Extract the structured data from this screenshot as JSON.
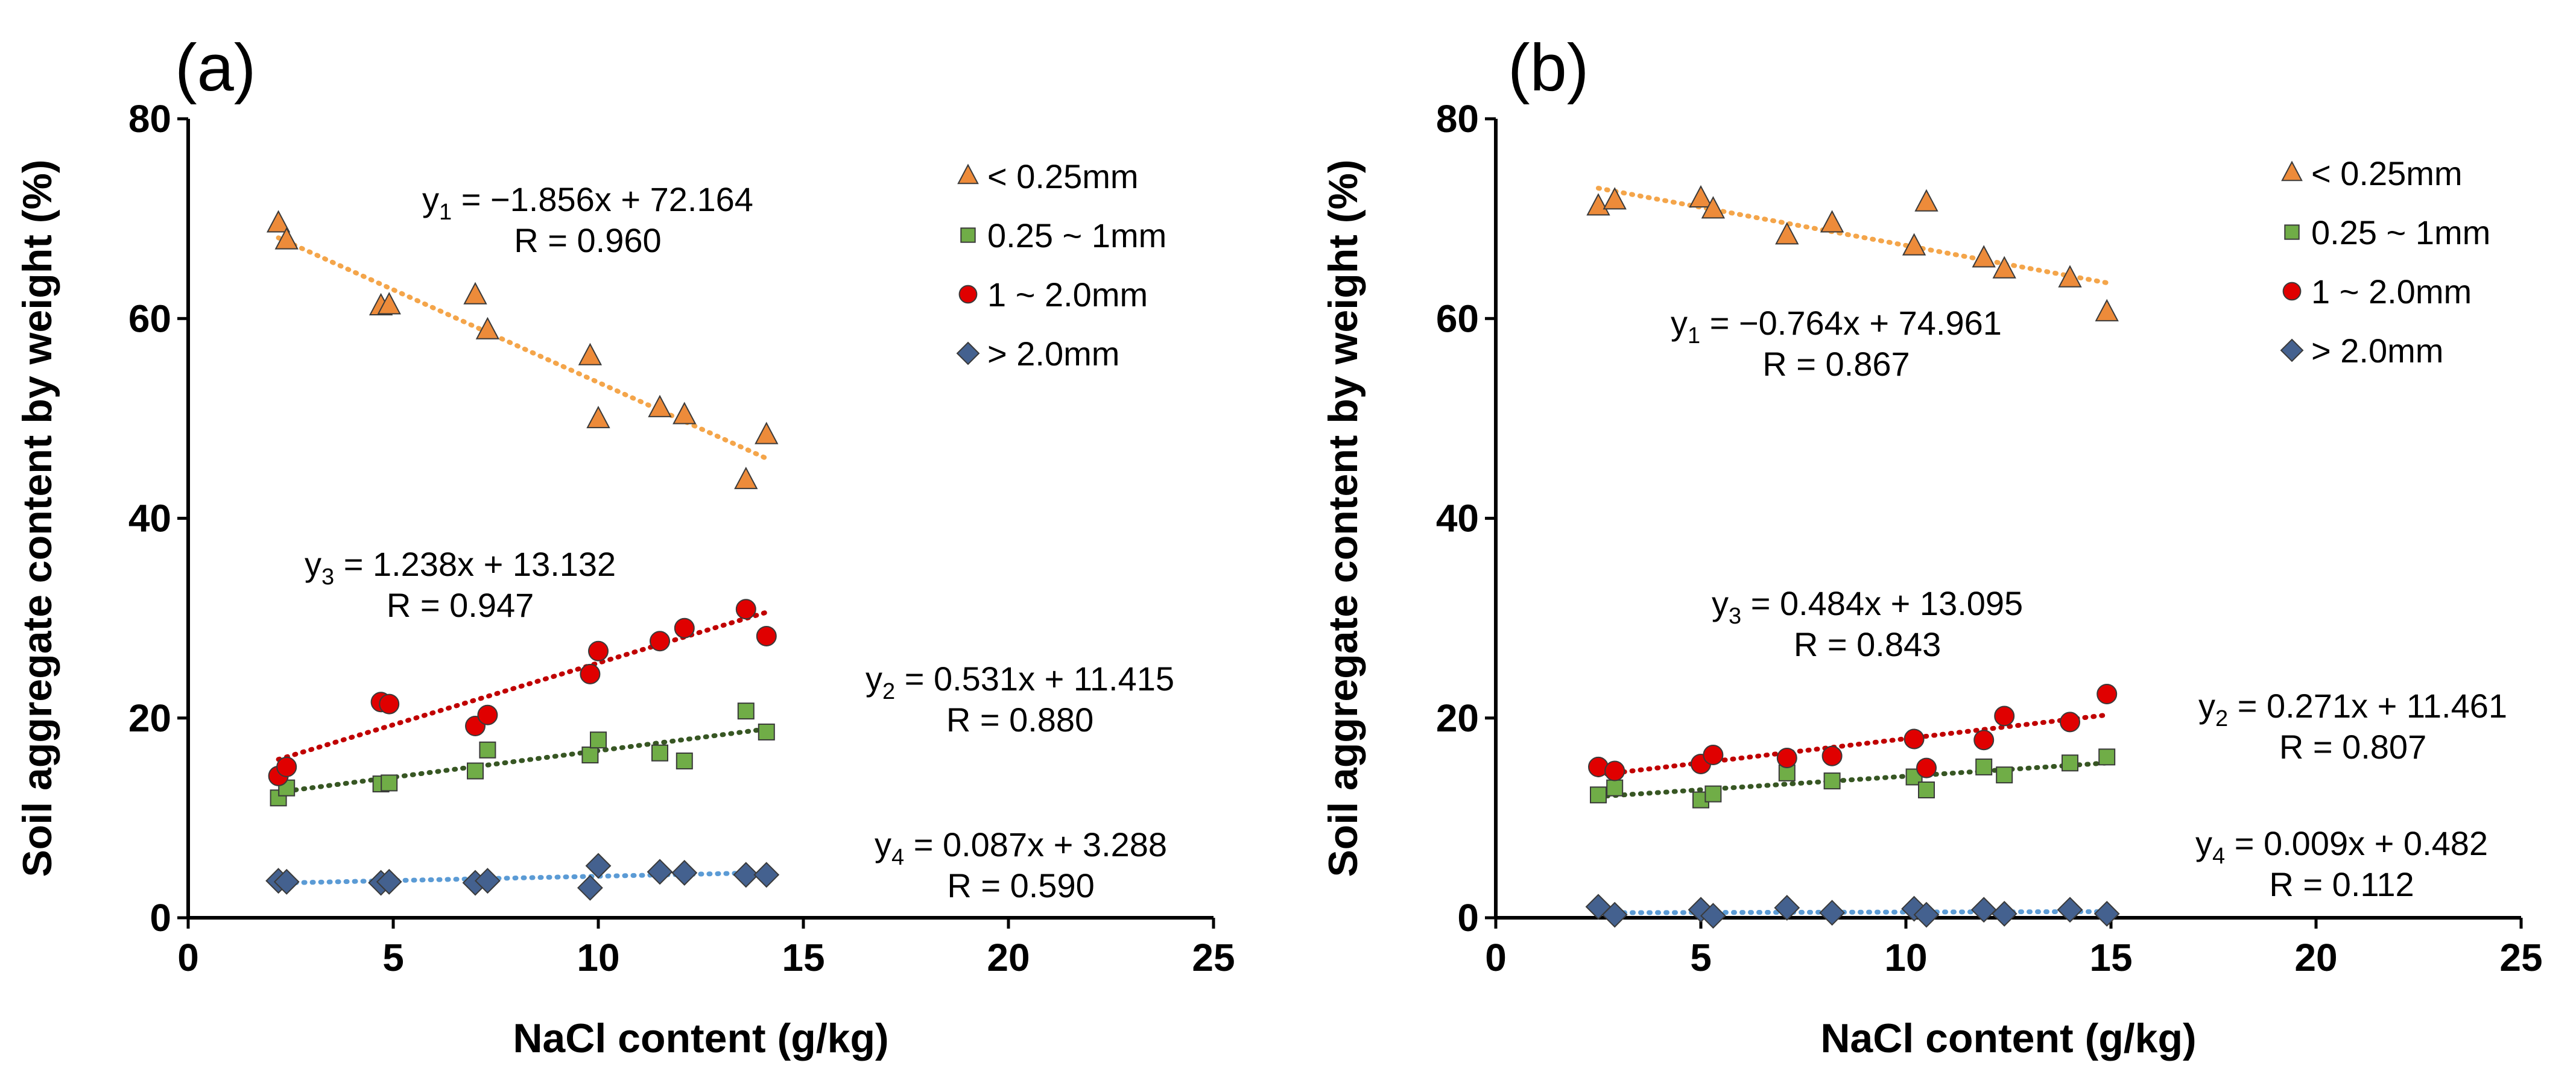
{
  "chart_data": [
    {
      "type": "scatter",
      "panel_label": "(a)",
      "xlabel": "NaCl content (g/kg)",
      "ylabel": "Soil aggregate content by weight (%)",
      "xlim": [
        0,
        25
      ],
      "ylim": [
        0,
        80
      ],
      "xticks": [
        0,
        5,
        10,
        15,
        20,
        25
      ],
      "yticks": [
        0,
        20,
        40,
        60,
        80
      ],
      "grid": false,
      "legend_position": "top-right",
      "series": [
        {
          "name": "< 0.25mm",
          "marker": "triangle",
          "color": "#ED8B3A",
          "line_color": "#F4A54A",
          "x": [
            2.2,
            2.4,
            4.7,
            4.9,
            7.0,
            7.3,
            9.8,
            10.0,
            11.5,
            12.1,
            13.6,
            14.1
          ],
          "y": [
            69.5,
            67.8,
            61.2,
            61.3,
            62.3,
            58.8,
            56.2,
            49.9,
            51.0,
            50.3,
            43.8,
            48.3
          ],
          "fit": {
            "slope": -1.856,
            "intercept": 72.164,
            "x_range": [
              2.2,
              14.1
            ]
          },
          "equation_var": "y",
          "equation_sub": "1",
          "equation_rest": " = −1.856x + 72.164",
          "r_text": "R = 0.960"
        },
        {
          "name": "0.25 ~ 1mm",
          "marker": "square",
          "color": "#70AD47",
          "line_color": "#375623",
          "x": [
            2.2,
            2.4,
            4.7,
            4.9,
            7.0,
            7.3,
            9.8,
            10.0,
            11.5,
            12.1,
            13.6,
            14.1
          ],
          "y": [
            12.0,
            13.0,
            13.4,
            13.5,
            14.7,
            16.8,
            16.3,
            17.8,
            16.5,
            15.7,
            20.7,
            18.6
          ],
          "fit": {
            "slope": 0.531,
            "intercept": 11.415,
            "x_range": [
              2.2,
              14.1
            ]
          },
          "equation_var": "y",
          "equation_sub": "2",
          "equation_rest": " = 0.531x + 11.415",
          "r_text": "R = 0.880"
        },
        {
          "name": "1 ~ 2.0mm",
          "marker": "circle",
          "color": "#E00000",
          "line_color": "#C00000",
          "x": [
            2.2,
            2.4,
            4.7,
            4.9,
            7.0,
            7.3,
            9.8,
            10.0,
            11.5,
            12.1,
            13.6,
            14.1
          ],
          "y": [
            14.2,
            15.1,
            21.6,
            21.4,
            19.2,
            20.3,
            24.4,
            26.7,
            27.7,
            29.0,
            30.9,
            28.2
          ],
          "fit": {
            "slope": 1.238,
            "intercept": 13.132,
            "x_range": [
              2.2,
              14.1
            ]
          },
          "equation_var": "y",
          "equation_sub": "3",
          "equation_rest": " = 1.238x + 13.132",
          "r_text": "R = 0.947"
        },
        {
          "name": "> 2.0mm",
          "marker": "diamond",
          "color": "#44618F",
          "line_color": "#5B9BD5",
          "x": [
            2.2,
            2.4,
            4.7,
            4.9,
            7.0,
            7.3,
            9.8,
            10.0,
            11.5,
            12.1,
            13.6,
            14.1
          ],
          "y": [
            3.7,
            3.6,
            3.5,
            3.6,
            3.5,
            3.7,
            3.0,
            5.2,
            4.6,
            4.5,
            4.3,
            4.3
          ],
          "fit": {
            "slope": 0.087,
            "intercept": 3.288,
            "x_range": [
              2.2,
              14.1
            ]
          },
          "equation_var": "y",
          "equation_sub": "4",
          "equation_rest": " = 0.087x + 3.288",
          "r_text": "R = 0.590"
        }
      ]
    },
    {
      "type": "scatter",
      "panel_label": "(b)",
      "xlabel": "NaCl content (g/kg)",
      "ylabel": "Soil aggregate content by weight (%)",
      "xlim": [
        0,
        25
      ],
      "ylim": [
        0,
        80
      ],
      "xticks": [
        0,
        5,
        10,
        15,
        20,
        25
      ],
      "yticks": [
        0,
        20,
        40,
        60,
        80
      ],
      "grid": false,
      "legend_position": "top-right",
      "series": [
        {
          "name": "< 0.25mm",
          "marker": "triangle",
          "color": "#ED8B3A",
          "line_color": "#F4A54A",
          "x": [
            2.5,
            2.9,
            5.0,
            5.3,
            7.1,
            8.2,
            10.2,
            10.5,
            11.9,
            12.4,
            14.0,
            14.9
          ],
          "y": [
            71.2,
            71.8,
            72.0,
            70.9,
            68.3,
            69.5,
            67.2,
            71.6,
            66.0,
            64.9,
            64.0,
            60.6
          ],
          "fit": {
            "slope": -0.764,
            "intercept": 74.961,
            "x_range": [
              2.5,
              14.9
            ]
          },
          "equation_var": "y",
          "equation_sub": "1",
          "equation_rest": " = −0.764x + 74.961",
          "r_text": "R = 0.867"
        },
        {
          "name": "0.25 ~ 1mm",
          "marker": "square",
          "color": "#70AD47",
          "line_color": "#375623",
          "x": [
            2.5,
            2.9,
            5.0,
            5.3,
            7.1,
            8.2,
            10.2,
            10.5,
            11.9,
            12.4,
            14.0,
            14.9
          ],
          "y": [
            12.3,
            13.0,
            11.8,
            12.4,
            14.5,
            13.7,
            14.1,
            12.8,
            15.1,
            14.3,
            15.5,
            16.1
          ],
          "fit": {
            "slope": 0.271,
            "intercept": 11.461,
            "x_range": [
              2.5,
              14.9
            ]
          },
          "equation_var": "y",
          "equation_sub": "2",
          "equation_rest": " = 0.271x + 11.461",
          "r_text": "R = 0.807"
        },
        {
          "name": "1 ~ 2.0mm",
          "marker": "circle",
          "color": "#E00000",
          "line_color": "#C00000",
          "x": [
            2.5,
            2.9,
            5.0,
            5.3,
            7.1,
            8.2,
            10.2,
            10.5,
            11.9,
            12.4,
            14.0,
            14.9
          ],
          "y": [
            15.1,
            14.7,
            15.4,
            16.3,
            16.0,
            16.2,
            17.9,
            15.0,
            17.8,
            20.2,
            19.6,
            22.4
          ],
          "fit": {
            "slope": 0.484,
            "intercept": 13.095,
            "x_range": [
              2.5,
              14.9
            ]
          },
          "equation_var": "y",
          "equation_sub": "3",
          "equation_rest": " = 0.484x + 13.095",
          "r_text": "R = 0.843"
        },
        {
          "name": "> 2.0mm",
          "marker": "diamond",
          "color": "#44618F",
          "line_color": "#5B9BD5",
          "x": [
            2.5,
            2.9,
            5.0,
            5.3,
            7.1,
            8.2,
            10.2,
            10.5,
            11.9,
            12.4,
            14.0,
            14.9
          ],
          "y": [
            1.1,
            0.3,
            0.8,
            0.2,
            1.0,
            0.5,
            0.9,
            0.3,
            0.8,
            0.4,
            0.8,
            0.4
          ],
          "fit": {
            "slope": 0.009,
            "intercept": 0.482,
            "x_range": [
              2.5,
              14.9
            ]
          },
          "equation_var": "y",
          "equation_sub": "4",
          "equation_rest": " = 0.009x + 0.482",
          "r_text": "R = 0.112"
        }
      ]
    }
  ]
}
